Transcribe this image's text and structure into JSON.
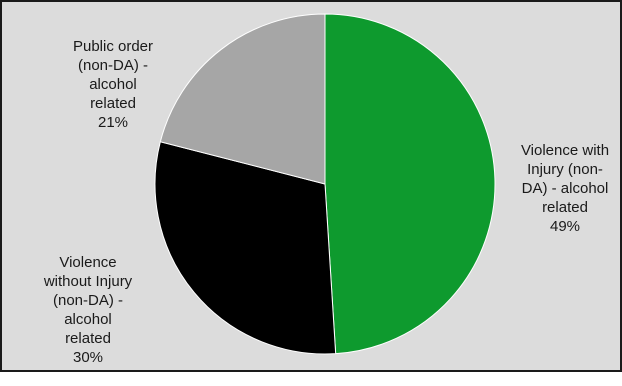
{
  "chart_data": {
    "type": "pie",
    "slices": [
      {
        "label": "Violence with Injury (non-DA) - alcohol related",
        "value": 49,
        "color": "#0e9a2e",
        "display_label": "Violence with\nInjury (non-\nDA) - alcohol\nrelated",
        "display_pct": "49%"
      },
      {
        "label": "Violence without Injury (non-DA) - alcohol related",
        "value": 30,
        "color": "#000000",
        "display_label": "Violence\nwithout Injury\n(non-DA) -\nalcohol\nrelated",
        "display_pct": "30%"
      },
      {
        "label": "Public order (non-DA) - alcohol related",
        "value": 21,
        "color": "#a6a6a6",
        "display_label": "Public order\n(non-DA) -\nalcohol\nrelated",
        "display_pct": "21%"
      }
    ]
  }
}
